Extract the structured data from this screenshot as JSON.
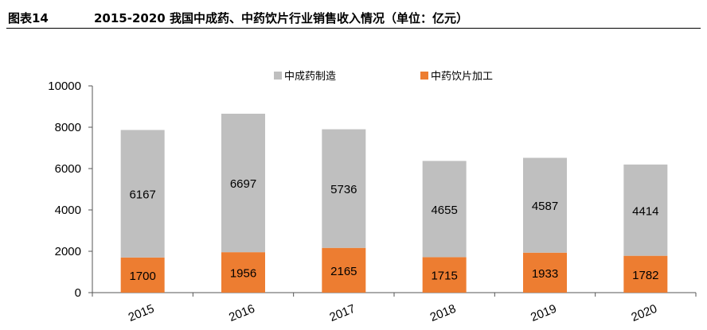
{
  "header": {
    "figure_number": "图表14",
    "title": "2015-2020 我国中成药、中药饮片行业销售收入情况（单位：亿元）"
  },
  "colors": {
    "series_top": "#bfbfbf",
    "series_bottom": "#ed7d31",
    "axis": "#555555"
  },
  "chart_data": {
    "type": "bar",
    "stacked": true,
    "title": "",
    "xlabel": "",
    "ylabel": "",
    "categories": [
      "2015",
      "2016",
      "2017",
      "2018",
      "2019",
      "2020"
    ],
    "ylim": [
      0,
      10000
    ],
    "yticks": [
      0,
      2000,
      4000,
      6000,
      8000,
      10000
    ],
    "grid": false,
    "legend_position": "top",
    "series": [
      {
        "name": "中药饮片加工",
        "values": [
          1700,
          1956,
          2165,
          1715,
          1933,
          1782
        ]
      },
      {
        "name": "中成药制造",
        "values": [
          6167,
          6697,
          5736,
          4655,
          4587,
          4414
        ]
      }
    ]
  }
}
